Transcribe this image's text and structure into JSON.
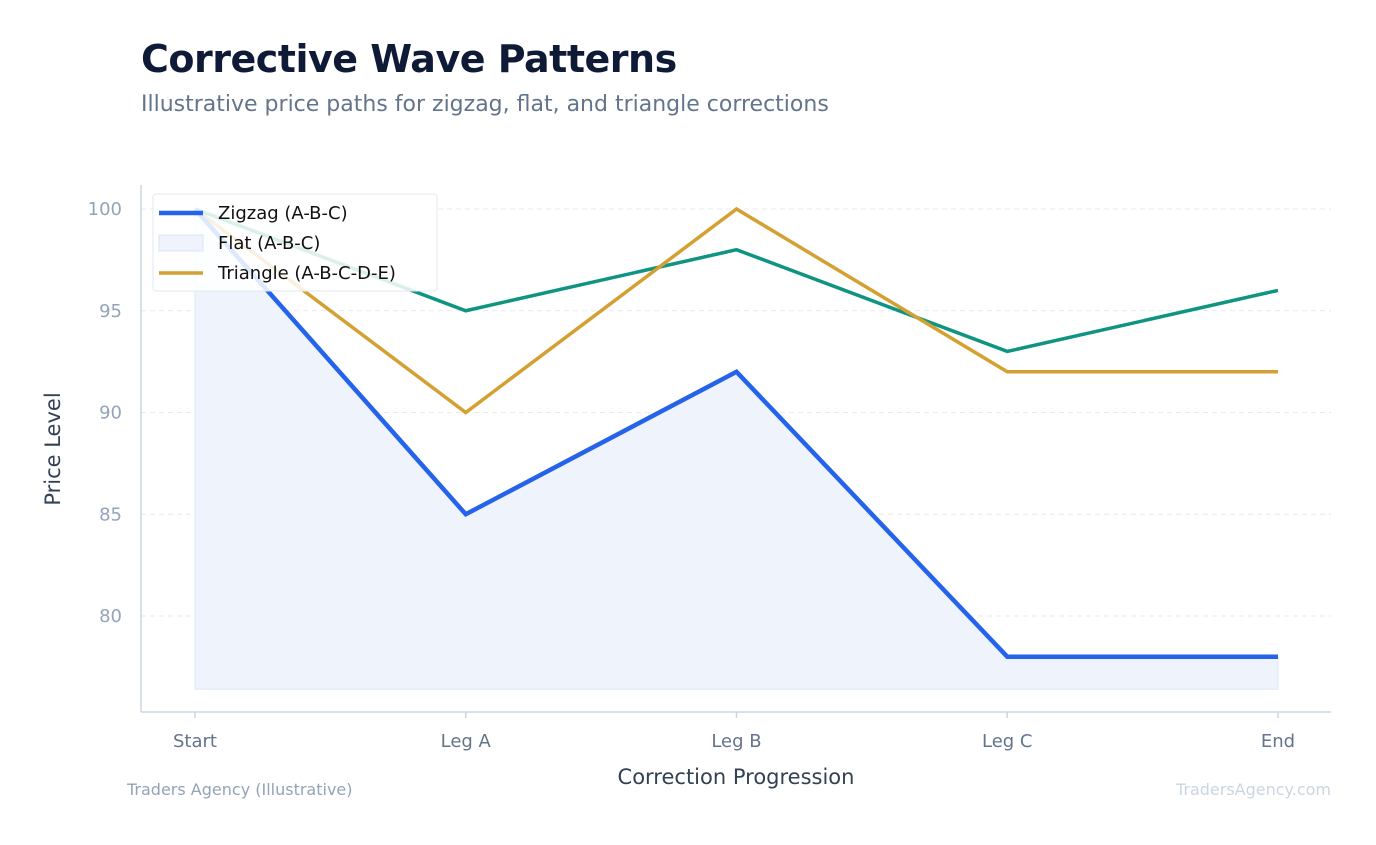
{
  "header": {
    "title": "Corrective Wave Patterns",
    "subtitle": "Illustrative price paths for zigzag, flat, and triangle corrections"
  },
  "footer": {
    "source": "Traders Agency (Illustrative)",
    "watermark": "TradersAgency.com"
  },
  "colors": {
    "zigzag": "#2563eb",
    "flat_fill": "#eef3fc",
    "flat_line": "#0f9482",
    "triangle": "#d4a032",
    "grid": "#e5e9f0",
    "axis": "#cbd5e1",
    "tick_y": "#94a3b8",
    "tick_x": "#64748b"
  },
  "chart_data": {
    "type": "line",
    "xlabel": "Correction Progression",
    "ylabel": "Price Level",
    "categories": [
      "Start",
      "Leg A",
      "Leg B",
      "Leg C",
      "End"
    ],
    "ylim": [
      75,
      101
    ],
    "yticks": [
      80,
      85,
      90,
      95,
      100
    ],
    "grid": "horizontal dashed",
    "legend_position": "top-left",
    "legend": [
      {
        "label": "Zigzag (A-B-C)",
        "swatch": "line",
        "color": "#2563eb"
      },
      {
        "label": "Flat (A-B-C)",
        "swatch": "area",
        "color": "#eef3fc"
      },
      {
        "label": "Triangle (A-B-C-D-E)",
        "swatch": "line",
        "color": "#d4a032"
      }
    ],
    "series": [
      {
        "id": "zigzag",
        "values": [
          100,
          85,
          92,
          78,
          78
        ],
        "color": "#2563eb",
        "width": 4.5,
        "fill_to": 76.4,
        "fill_color": "#eef3fc"
      },
      {
        "id": "flat",
        "values": [
          100,
          95,
          98,
          93,
          96
        ],
        "color": "#0f9482",
        "width": 3.5
      },
      {
        "id": "triangle",
        "values": [
          100,
          90,
          100,
          92,
          92
        ],
        "color": "#d4a032",
        "width": 3.5
      }
    ]
  }
}
